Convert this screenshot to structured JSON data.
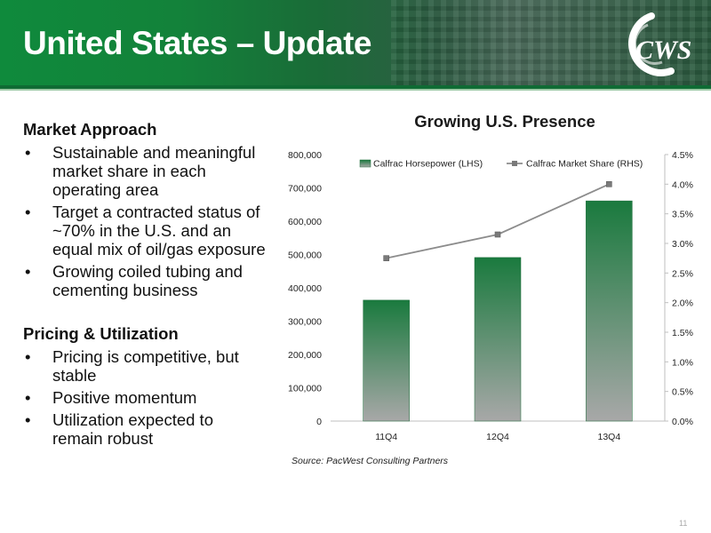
{
  "header": {
    "title": "United States – Update",
    "logo_text": "CWS"
  },
  "left": {
    "section1": {
      "heading": "Market Approach",
      "bullets": [
        "Sustainable and meaningful market share in each operating area",
        "Target a contracted status of ~70% in the U.S. and an equal mix of oil/gas exposure",
        "Growing coiled tubing and cementing business"
      ]
    },
    "section2": {
      "heading": "Pricing & Utilization",
      "bullets": [
        "Pricing is competitive, but stable",
        "Positive momentum",
        "Utilization expected to remain robust"
      ]
    },
    "bullet_char": "•"
  },
  "chart_data": {
    "type": "bar",
    "title": "Growing U.S. Presence",
    "categories": [
      "11Q4",
      "12Q4",
      "13Q4"
    ],
    "series": [
      {
        "name": "Calfrac Horsepower (LHS)",
        "kind": "bar",
        "axis": "left",
        "values": [
          363000,
          491000,
          661000
        ]
      },
      {
        "name": "Calfrac Market Share (RHS)",
        "kind": "line",
        "axis": "right",
        "values": [
          2.75,
          3.15,
          4.0
        ]
      }
    ],
    "left_axis": {
      "ylim": [
        0,
        800000
      ],
      "ticks": [
        "0",
        "100,000",
        "200,000",
        "300,000",
        "400,000",
        "500,000",
        "600,000",
        "700,000",
        "800,000"
      ]
    },
    "right_axis": {
      "ylim": [
        0,
        4.5
      ],
      "ticks": [
        "0.0%",
        "0.5%",
        "1.0%",
        "1.5%",
        "2.0%",
        "2.5%",
        "3.0%",
        "3.5%",
        "4.0%",
        "4.5%"
      ]
    },
    "grid": false,
    "legend_position": "top",
    "colors": {
      "bar_top": "#1a7a3e",
      "bar_bottom": "#a8a8a8",
      "line": "#8c8c8c",
      "marker": "#7a7a7a"
    }
  },
  "source": "Source: PacWest Consulting Partners",
  "page_number": "11"
}
